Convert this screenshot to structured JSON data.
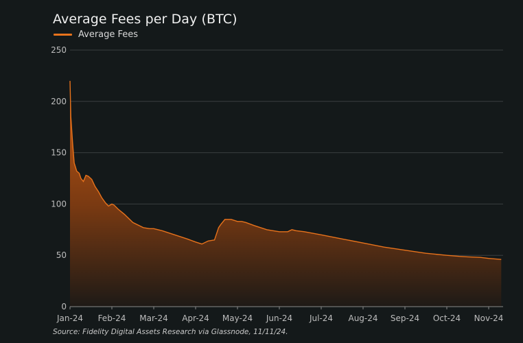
{
  "chart_data": {
    "type": "area",
    "title": "Average Fees per Day (BTC)",
    "legend": [
      {
        "label": "Average Fees",
        "color": "#e8731c"
      }
    ],
    "legend_position": "top-left",
    "source": "Source: Fidelity Digital Assets Research via Glassnode, 11/11/24.",
    "xlabel": "",
    "ylabel": "",
    "ylim": [
      0,
      250
    ],
    "yticks": [
      0,
      50,
      100,
      150,
      200,
      250
    ],
    "xticks": [
      "Jan-24",
      "Feb-24",
      "Mar-24",
      "Apr-24",
      "May-24",
      "Jun-24",
      "Jul-24",
      "Aug-24",
      "Sep-24",
      "Oct-24",
      "Nov-24"
    ],
    "grid": true,
    "series": [
      {
        "name": "Average Fees",
        "color": "#e8731c",
        "x_months": [
          0,
          0.02,
          0.06,
          0.1,
          0.16,
          0.22,
          0.26,
          0.32,
          0.38,
          0.44,
          0.52,
          0.6,
          0.68,
          0.76,
          0.85,
          0.92,
          1.0,
          1.05,
          1.15,
          1.3,
          1.5,
          1.75,
          1.9,
          2.0,
          2.1,
          2.2,
          2.5,
          2.8,
          3.0,
          3.15,
          3.3,
          3.45,
          3.55,
          3.6,
          3.7,
          3.85,
          4.0,
          4.1,
          4.2,
          4.4,
          4.7,
          5.0,
          5.2,
          5.3,
          5.4,
          5.6,
          6.0,
          6.5,
          7.0,
          7.5,
          8.0,
          8.5,
          9.0,
          9.3,
          9.5,
          9.8,
          10.0,
          10.15,
          10.3
        ],
        "values": [
          220,
          185,
          160,
          140,
          132,
          130,
          125,
          122,
          128,
          127,
          124,
          117,
          112,
          106,
          101,
          98,
          100,
          99,
          95,
          90,
          82,
          77,
          76,
          76,
          75,
          74,
          70,
          66,
          63,
          61,
          64,
          65,
          77,
          80,
          85,
          85,
          83,
          83,
          82,
          79,
          75,
          73,
          73,
          75,
          74,
          73,
          70,
          66,
          62,
          58,
          55,
          52,
          50,
          49,
          48.5,
          48,
          47,
          46.5,
          46
        ]
      }
    ]
  }
}
